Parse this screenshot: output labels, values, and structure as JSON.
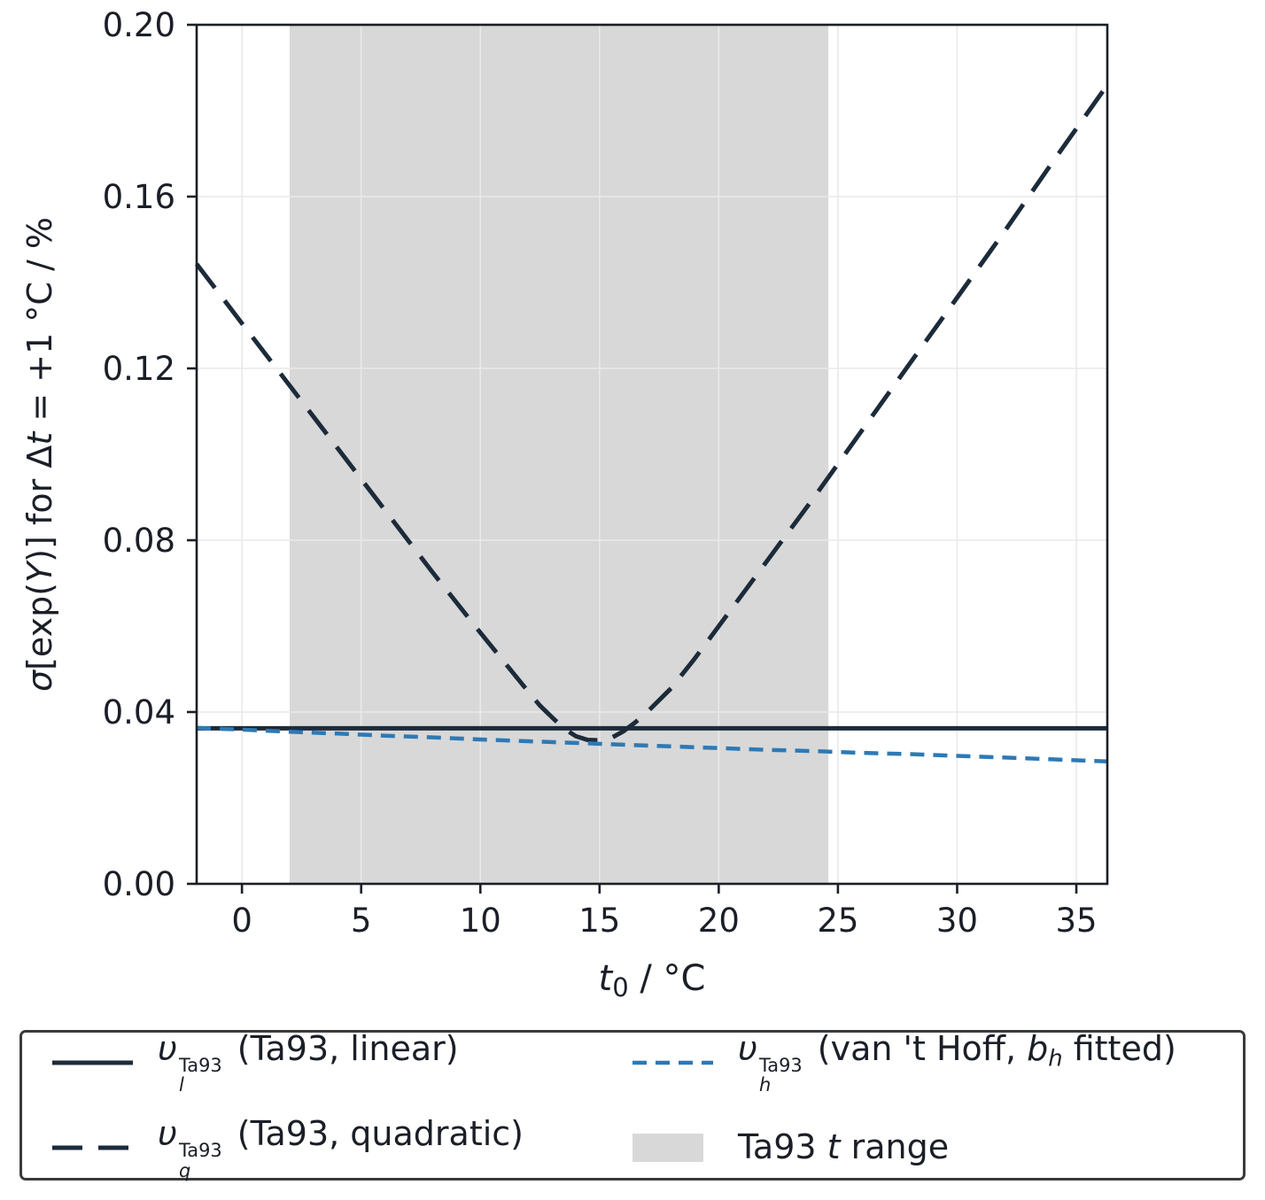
{
  "figure": {
    "background": "#ffffff"
  },
  "chart_data": {
    "type": "line",
    "title": "",
    "xlabel": "t0 / °C",
    "xlabel_parts": [
      {
        "t": "t",
        "i": 1
      },
      {
        "t": "0",
        "sub": 1
      },
      {
        "t": " / °C"
      }
    ],
    "ylabel": "σ[exp(Y)] for Δt = +1 °C / %",
    "ylabel_parts": [
      {
        "t": "σ",
        "i": 1
      },
      {
        "t": "[exp("
      },
      {
        "t": "Y",
        "i": 1
      },
      {
        "t": ")] for Δ"
      },
      {
        "t": "t",
        "i": 1
      },
      {
        "t": " = +1 °C / %"
      }
    ],
    "xlim": [
      -1.9,
      36.3
    ],
    "ylim": [
      0,
      0.2
    ],
    "grid": true,
    "legend_position": "bottom",
    "axis_color": "#1a1f27",
    "grid_color": "#e9e9e9",
    "xticks": {
      "values": [
        0,
        5,
        10,
        15,
        20,
        25,
        30,
        35
      ],
      "labels": [
        "0",
        "5",
        "10",
        "15",
        "20",
        "25",
        "30",
        "35"
      ]
    },
    "yticks": {
      "values": [
        0,
        0.04,
        0.08,
        0.12,
        0.16,
        0.2
      ],
      "labels": [
        "0.00",
        "0.04",
        "0.08",
        "0.12",
        "0.16",
        "0.20"
      ]
    },
    "region": {
      "x0": 2.0,
      "x1": 24.6,
      "color": "#d8d8d8",
      "label": "Ta93 t range"
    },
    "series": [
      {
        "name": "v_l^Ta93 (Ta93, linear)",
        "color": "#1c2b3a",
        "width": 5,
        "dash": "",
        "x": [
          -1.9,
          36.3
        ],
        "y": [
          0.0362,
          0.0362
        ]
      },
      {
        "name": "v_q^Ta93 (Ta93, quadratic)",
        "color": "#1c2b3a",
        "width": 5,
        "dash": "34 18",
        "x": [
          -1.9,
          0,
          2,
          4,
          6,
          8,
          10,
          12,
          12.5,
          13,
          13.5,
          14,
          14.5,
          15,
          15.5,
          16,
          16.5,
          17,
          18,
          19,
          20,
          22,
          24,
          26,
          28,
          30,
          32,
          34,
          36.3
        ],
        "y": [
          0.1443,
          0.1305,
          0.116,
          0.1015,
          0.087,
          0.0725,
          0.0585,
          0.0448,
          0.0415,
          0.0388,
          0.0362,
          0.0344,
          0.0335,
          0.0334,
          0.034,
          0.0355,
          0.0376,
          0.04,
          0.0455,
          0.0525,
          0.06,
          0.075,
          0.09,
          0.1055,
          0.121,
          0.1365,
          0.152,
          0.168,
          0.186
        ]
      },
      {
        "name": "v_h^Ta93 (van 't Hoff, b_h fitted)",
        "color": "#2e79b5",
        "width": 4.5,
        "dash": "16 10",
        "x": [
          -1.9,
          0,
          2,
          4,
          6,
          8,
          10,
          12,
          14,
          16,
          18,
          20,
          22,
          24,
          26,
          28,
          30,
          32,
          34,
          36.3
        ],
        "y": [
          0.0363,
          0.0359,
          0.0354,
          0.035,
          0.0345,
          0.0341,
          0.0336,
          0.0332,
          0.0328,
          0.0324,
          0.032,
          0.0316,
          0.0312,
          0.0309,
          0.0305,
          0.0302,
          0.0298,
          0.0294,
          0.029,
          0.0285
        ]
      }
    ],
    "legend": {
      "items": [
        {
          "marker": "line",
          "series": 0,
          "label": [
            {
              "t": "υ",
              "i": 1
            },
            {
              "stack": {
                "sup": "Ta93",
                "sub": "l"
              }
            },
            {
              "t": " (Ta93, linear)"
            }
          ]
        },
        {
          "marker": "line",
          "series": 1,
          "label": [
            {
              "t": "υ",
              "i": 1
            },
            {
              "stack": {
                "sup": "Ta93",
                "sub": "q"
              }
            },
            {
              "t": " (Ta93, quadratic)"
            }
          ]
        },
        {
          "marker": "line",
          "series": 2,
          "label": [
            {
              "t": "υ",
              "i": 1
            },
            {
              "stack": {
                "sup": "Ta93",
                "sub": "h"
              }
            },
            {
              "t": " (van 't Hoff, "
            },
            {
              "t": "b",
              "i": 1
            },
            {
              "t": "h",
              "i": 1,
              "sub": 1
            },
            {
              "t": " fitted)"
            }
          ]
        },
        {
          "marker": "patch",
          "label": [
            {
              "t": "Ta93 "
            },
            {
              "t": "t",
              "i": 1
            },
            {
              "t": " range"
            }
          ]
        }
      ]
    }
  }
}
